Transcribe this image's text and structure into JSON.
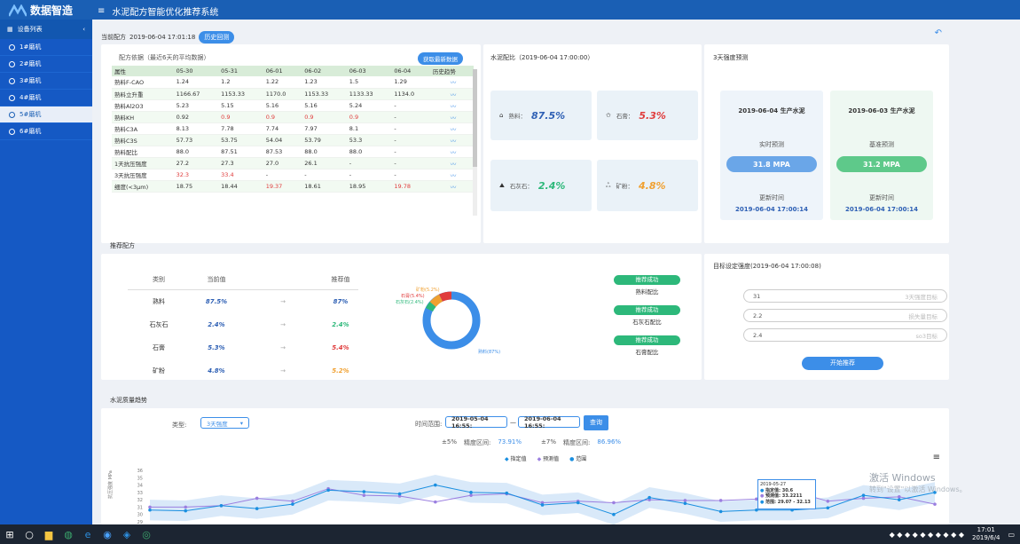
{
  "app": {
    "brand": "数据智造",
    "title": "水泥配方智能优化推荐系统"
  },
  "sidebar": {
    "header": "设备列表",
    "items": [
      {
        "label": "1#磨机",
        "active": false
      },
      {
        "label": "2#磨机",
        "active": false
      },
      {
        "label": "3#磨机",
        "active": false
      },
      {
        "label": "4#磨机",
        "active": false
      },
      {
        "label": "5#磨机",
        "active": true
      },
      {
        "label": "6#磨机",
        "active": false
      }
    ]
  },
  "current": {
    "label": "当前配方",
    "time": "2019-06-04 17:01:18",
    "history_btn": "历史回测"
  },
  "formula": {
    "title": "配方依据（最近6天的平均数据）",
    "fetch_btn": "获取最新数据",
    "columns": [
      "属性",
      "05-30",
      "05-31",
      "06-01",
      "06-02",
      "06-03",
      "06-04",
      "历史趋势"
    ],
    "rows": [
      {
        "name": "熟料F-CAO",
        "v": [
          "1.24",
          "1.2",
          "1.22",
          "1.23",
          "1.5",
          "1.29"
        ],
        "red": []
      },
      {
        "name": "熟料立升重",
        "v": [
          "1166.67",
          "1153.33",
          "1170.0",
          "1153.33",
          "1133.33",
          "1134.0"
        ],
        "red": []
      },
      {
        "name": "熟料Al2O3",
        "v": [
          "5.23",
          "5.15",
          "5.16",
          "5.16",
          "5.24",
          "-"
        ],
        "red": []
      },
      {
        "name": "熟料KH",
        "v": [
          "0.92",
          "0.9",
          "0.9",
          "0.9",
          "0.9",
          "-"
        ],
        "red": [
          1,
          2,
          3,
          4
        ]
      },
      {
        "name": "熟料C3A",
        "v": [
          "8.13",
          "7.78",
          "7.74",
          "7.97",
          "8.1",
          "-"
        ],
        "red": []
      },
      {
        "name": "熟料C3S",
        "v": [
          "57.73",
          "53.75",
          "54.04",
          "53.79",
          "53.3",
          "-"
        ],
        "red": []
      },
      {
        "name": "熟料配比",
        "v": [
          "88.0",
          "87.51",
          "87.53",
          "88.0",
          "88.0",
          "-"
        ],
        "red": []
      },
      {
        "name": "1天抗压强度",
        "v": [
          "27.2",
          "27.3",
          "27.0",
          "26.1",
          "-",
          "-"
        ],
        "red": []
      },
      {
        "name": "3天抗压强度",
        "v": [
          "32.3",
          "33.4",
          "-",
          "-",
          "-",
          "-"
        ],
        "red": [
          0,
          1
        ]
      },
      {
        "name": "细度(<3μm)",
        "v": [
          "18.75",
          "18.44",
          "19.37",
          "18.61",
          "18.95",
          "19.78"
        ],
        "red": [
          2,
          5
        ]
      }
    ]
  },
  "ratio": {
    "title": "水泥配比（2019-06-04 17:00:00）",
    "items": [
      {
        "label": "熟料：",
        "value": "87.5%",
        "color": "#2d5fb4"
      },
      {
        "label": "石膏：",
        "value": "5.3%",
        "color": "#e03c3c"
      },
      {
        "label": "石灰石：",
        "value": "2.4%",
        "color": "#2db87a"
      },
      {
        "label": "矿粉：",
        "value": "4.8%",
        "color": "#f0a030"
      }
    ]
  },
  "strength": {
    "title": "3天强度预测",
    "left": {
      "head": "2019-06-04 生产水泥",
      "sub": "实时预测",
      "value": "31.8 MPA",
      "upd": "更新时间",
      "time": "2019-06-04 17:00:14",
      "color": "#6aa6e8"
    },
    "right": {
      "head": "2019-06-03 生产水泥",
      "sub": "基准预测",
      "value": "31.2 MPA",
      "upd": "更新时间",
      "time": "2019-06-04 17:00:14",
      "color": "#5ec98a"
    }
  },
  "recommend": {
    "title": "推荐配方",
    "headers": [
      "类别",
      "当前值",
      "推荐值"
    ],
    "rows": [
      {
        "name": "熟料",
        "cur": "87.5%",
        "rec": "87%",
        "color": "#2d5fb4"
      },
      {
        "name": "石灰石",
        "cur": "2.4%",
        "rec": "2.4%",
        "color": "#2db87a"
      },
      {
        "name": "石膏",
        "cur": "5.3%",
        "rec": "5.4%",
        "color": "#e03c3c"
      },
      {
        "name": "矿粉",
        "cur": "4.8%",
        "rec": "5.2%",
        "color": "#f0a030"
      }
    ],
    "arrow": "→",
    "donut_labels": [
      "矿粉(5.2%)",
      "石膏(5.4%)",
      "石灰石(2.4%)",
      "熟料(87%)"
    ],
    "status": [
      {
        "btn": "推荐成功",
        "label": "熟料配比"
      },
      {
        "btn": "推荐成功",
        "label": "石灰石配比"
      },
      {
        "btn": "推荐成功",
        "label": "石膏配比"
      }
    ]
  },
  "target": {
    "title": "目标设定强度(2019-06-04 17:00:08)",
    "inputs": [
      {
        "value": "31",
        "placeholder": "3天强度目标"
      },
      {
        "value": "2.2",
        "placeholder": "损失量目标"
      },
      {
        "value": "2.4",
        "placeholder": "so3目标"
      }
    ],
    "start_btn": "开始推荐"
  },
  "trend": {
    "title": "水泥质量趋势",
    "type_label": "类型:",
    "type_value": "3天强度",
    "range_label": "时间范围:",
    "from": "2019-05-04 16:55:",
    "to": "2019-06-04 16:55:",
    "query_btn": "查询",
    "pm5": "±5%",
    "acc_label1": "精度区间:",
    "acc1": "73.91%",
    "pm7": "±7%",
    "acc_label2": "精度区间:",
    "acc2": "86.96%",
    "legend": [
      "指定值",
      "预测值",
      "范围"
    ],
    "ylabel": "抗压强度 MPa",
    "tooltip": {
      "date": "2019-05-27",
      "l1": "指定值: 30.6",
      "l2": "预测值: 33.2211",
      "l3": "范围: 29.07 - 32.13"
    }
  },
  "chart_data": {
    "type": "line",
    "ylim": [
      29,
      36
    ],
    "series": [
      {
        "name": "指定值",
        "values": [
          30.6,
          30.5,
          31.2,
          30.8,
          31.4,
          33.3,
          33.1,
          32.8,
          34.0,
          33.0,
          32.9,
          31.3,
          31.6,
          30.0,
          32.3,
          31.5,
          30.4,
          30.6,
          30.6,
          30.9,
          32.6,
          32.0,
          33.0
        ]
      },
      {
        "name": "预测值",
        "values": [
          31.0,
          31.0,
          31.2,
          32.2,
          31.8,
          33.5,
          32.6,
          32.5,
          31.7,
          32.6,
          32.8,
          31.6,
          31.8,
          31.6,
          32.0,
          31.9,
          31.9,
          32.1,
          33.2,
          31.8,
          32.2,
          32.4,
          31.4
        ]
      }
    ]
  },
  "watermark": {
    "l1": "激活 Windows",
    "l2": "转到\"设置\"以激活 Windows。"
  },
  "taskbar": {
    "time": "17:01",
    "date": "2019/6/4"
  }
}
